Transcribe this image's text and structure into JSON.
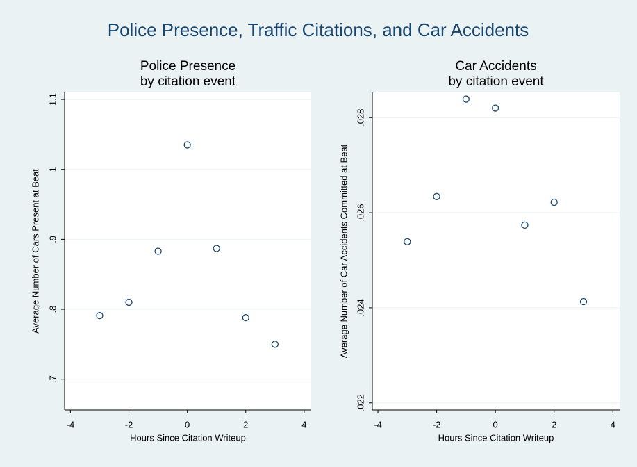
{
  "title": "Police Presence, Traffic Citations, and Car Accidents",
  "chart_data": [
    {
      "type": "scatter",
      "title": "Police Presence",
      "subtitle": "by citation event",
      "x_label": "Hours Since Citation Writeup",
      "y_label": "Average Number of Cars Present at Beat",
      "x": [
        -3,
        -2,
        -1,
        0,
        1,
        2,
        3
      ],
      "values": [
        0.791,
        0.81,
        0.883,
        1.035,
        0.887,
        0.788,
        0.75
      ],
      "color": "#1a476f",
      "grid": true,
      "xlim": [
        -4.2,
        4.24
      ],
      "xticks": [
        -4,
        -2,
        0,
        2,
        4
      ],
      "ylim": [
        0.656,
        1.11
      ],
      "yticks": [
        {
          "value": 0.7,
          "label": ".7"
        },
        {
          "value": 0.8,
          "label": ".8"
        },
        {
          "value": 0.9,
          "label": ".9"
        },
        1,
        {
          "value": 1.1,
          "label": "1.1"
        }
      ]
    },
    {
      "type": "scatter",
      "title": "Car Accidents",
      "subtitle": "by citation event",
      "x_label": "Hours Since Citation Writeup",
      "y_label": "Average Number of Car Accidents Committed at Beat",
      "x": [
        -3,
        -2,
        -1,
        0,
        1,
        2,
        3
      ],
      "values": [
        0.02539,
        0.02634,
        0.02839,
        0.0282,
        0.02574,
        0.02622,
        0.02413
      ],
      "color": "#1a476f",
      "grid": true,
      "xlim": [
        -4.19,
        4.23
      ],
      "xticks": [
        -4,
        -2,
        0,
        2,
        4
      ],
      "ylim": [
        0.02185,
        0.02853
      ],
      "yticks": [
        {
          "value": 0.022,
          "label": ".022"
        },
        {
          "value": 0.024,
          "label": ".024"
        },
        {
          "value": 0.026,
          "label": ".026"
        },
        {
          "value": 0.028,
          "label": ".028"
        }
      ]
    }
  ]
}
